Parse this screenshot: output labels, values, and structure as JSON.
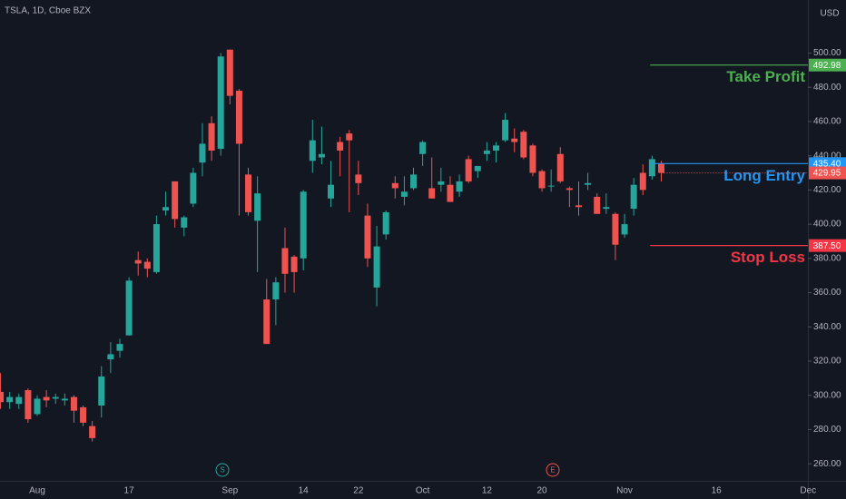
{
  "header": {
    "symbol": "TSLA, 1D, Cboe BZX",
    "currency": "USD"
  },
  "events": [
    "S",
    "E"
  ],
  "chart_data": {
    "type": "candlestick",
    "up_color": "#26a69a",
    "down_color": "#ef5350",
    "grid": false,
    "categories": [
      null,
      null,
      null,
      null,
      "Aug",
      null,
      null,
      null,
      null,
      null,
      null,
      null,
      null,
      null,
      "17",
      null,
      null,
      null,
      null,
      null,
      null,
      null,
      null,
      null,
      null,
      "Sep",
      null,
      null,
      null,
      null,
      null,
      null,
      null,
      "14",
      null,
      null,
      null,
      null,
      null,
      "22",
      null,
      null,
      null,
      null,
      null,
      null,
      "Oct",
      null,
      null,
      null,
      null,
      null,
      null,
      "12",
      null,
      null,
      null,
      null,
      null,
      "20",
      null,
      null,
      null,
      null,
      null,
      null,
      null,
      null,
      "Nov",
      null,
      null,
      null,
      null,
      null,
      null,
      null,
      null,
      null,
      "16",
      null,
      null,
      null,
      null,
      null,
      null,
      null,
      null,
      null,
      "Dec"
    ],
    "open": [
      302,
      296,
      295,
      303,
      289,
      299,
      298,
      297,
      299,
      293,
      282,
      294,
      321,
      326,
      335,
      379,
      378,
      372,
      408,
      425,
      398,
      412,
      436,
      459,
      444,
      502,
      478,
      429,
      402,
      356,
      356,
      386,
      381,
      380,
      437,
      439,
      415,
      448,
      453,
      429,
      405,
      363,
      394,
      424,
      416,
      421,
      441,
      421,
      423,
      423,
      419,
      438,
      431,
      441,
      443,
      449,
      450,
      454,
      446,
      431,
      422,
      441,
      421,
      411,
      423,
      416,
      409,
      406,
      394,
      409,
      430,
      428,
      435.4,
      null,
      null,
      null,
      null,
      null,
      null,
      null,
      null,
      null,
      null,
      null,
      null,
      null,
      null,
      null,
      null
    ],
    "high": [
      313,
      302,
      301,
      304,
      300,
      303,
      301,
      301,
      300,
      294,
      285,
      317,
      331,
      333,
      369,
      384,
      380,
      405,
      419,
      425,
      405,
      433,
      459,
      463,
      500,
      502,
      479,
      433,
      428,
      368,
      369,
      398,
      382,
      420,
      461,
      457,
      437,
      451,
      455,
      437,
      412,
      399,
      408,
      428,
      428,
      433,
      449,
      439,
      433,
      428,
      429,
      440,
      434,
      448,
      448,
      465,
      456,
      455,
      447,
      432,
      432,
      445,
      422,
      425,
      430,
      418,
      418,
      407,
      406,
      427,
      435,
      440,
      437,
      null,
      null,
      null,
      null,
      null,
      null,
      null,
      null,
      null,
      null,
      null,
      null,
      null,
      null,
      null,
      null
    ],
    "low": [
      292,
      292,
      292,
      284,
      288,
      293,
      295,
      294,
      284,
      282,
      273,
      287,
      313,
      322,
      335,
      370,
      369,
      371,
      405,
      398,
      393,
      410,
      428,
      437,
      440,
      470,
      405,
      405,
      372,
      330,
      341,
      360,
      360,
      373,
      430,
      435,
      410,
      428,
      407,
      417,
      375,
      352,
      391,
      415,
      411,
      420,
      434,
      415,
      419,
      413,
      416,
      424,
      427,
      437,
      436,
      448,
      442,
      438,
      428,
      419,
      419,
      424,
      410,
      405,
      420,
      406,
      406,
      379,
      392,
      405,
      417,
      426,
      425,
      null,
      null,
      null,
      null,
      null,
      null,
      null,
      null,
      null,
      null,
      null,
      null,
      null,
      null,
      null,
      null
    ],
    "close": [
      296,
      299,
      299,
      286,
      298,
      297,
      299,
      298,
      291,
      284,
      275,
      311,
      324,
      330,
      367,
      377,
      374,
      400,
      410,
      403,
      404,
      430,
      447,
      443,
      498,
      475,
      447,
      407,
      418,
      330,
      366,
      371,
      372,
      419,
      449,
      441,
      423,
      443,
      449,
      424,
      380,
      387,
      407,
      421,
      419,
      429,
      448,
      415,
      425,
      413,
      425,
      425,
      434,
      443,
      446,
      461,
      448,
      439,
      430,
      421,
      422.5,
      425,
      420,
      410,
      424,
      406,
      410,
      388,
      400,
      423,
      420,
      438,
      429.95,
      null,
      null,
      null,
      null,
      null,
      null,
      null,
      null,
      null,
      null,
      null,
      null,
      null,
      null,
      null,
      null
    ],
    "ylim": [
      250,
      531
    ],
    "yticks": [
      {
        "value": 260,
        "label": "260.00"
      },
      {
        "value": 280,
        "label": "280.00"
      },
      {
        "value": 300,
        "label": "300.00"
      },
      {
        "value": 320,
        "label": "320.00"
      },
      {
        "value": 340,
        "label": "340.00"
      },
      {
        "value": 360,
        "label": "360.00"
      },
      {
        "value": 380,
        "label": "380.00"
      },
      {
        "value": 400,
        "label": "400.00"
      },
      {
        "value": 420,
        "label": "420.00"
      },
      {
        "value": 440,
        "label": "440.00"
      },
      {
        "value": 460,
        "label": "460.00"
      },
      {
        "value": 480,
        "label": "480.00"
      },
      {
        "value": 500,
        "label": "500.00"
      }
    ],
    "levels": [
      {
        "name": "Take Profit",
        "value": 492.98,
        "value_label": "492.98",
        "color": "#4caf50"
      },
      {
        "name": "Long Entry",
        "value": 435.4,
        "value_label": "435.40",
        "color": "#2196f3"
      },
      {
        "name": "Stop Loss",
        "value": 387.5,
        "value_label": "387.50",
        "color": "#f23645"
      }
    ]
  }
}
